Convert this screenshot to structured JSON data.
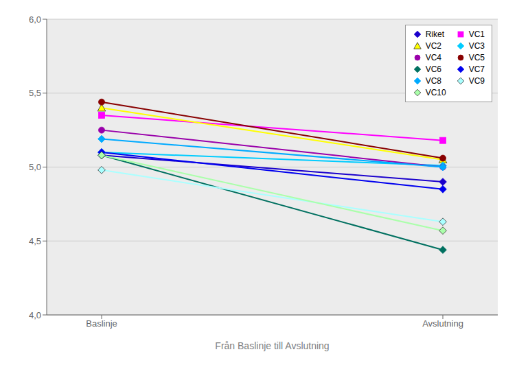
{
  "chart_data": {
    "type": "line",
    "x_label": "Från Baslinje till Avslutning",
    "categories": [
      "Baslinje",
      "Avslutning"
    ],
    "series": [
      {
        "name": "Riket",
        "color": "#1A00CC",
        "marker": "diamond",
        "values": [
          5.08,
          4.9
        ]
      },
      {
        "name": "VC1",
        "color": "#FF00FF",
        "marker": "square",
        "values": [
          5.35,
          5.18
        ]
      },
      {
        "name": "VC2",
        "color": "#FFFF00",
        "marker": "triangle",
        "values": [
          5.4,
          5.05
        ]
      },
      {
        "name": "VC3",
        "color": "#00CCFF",
        "marker": "diamond",
        "values": [
          5.1,
          5.01
        ]
      },
      {
        "name": "VC4",
        "color": "#9900AA",
        "marker": "circle",
        "values": [
          5.25,
          5.0
        ]
      },
      {
        "name": "VC5",
        "color": "#880000",
        "marker": "circle",
        "values": [
          5.44,
          5.06
        ]
      },
      {
        "name": "VC6",
        "color": "#007060",
        "marker": "diamond",
        "values": [
          5.08,
          4.44
        ]
      },
      {
        "name": "VC7",
        "color": "#0000EE",
        "marker": "diamond",
        "values": [
          5.1,
          4.85
        ]
      },
      {
        "name": "VC8",
        "color": "#00AAFF",
        "marker": "diamond",
        "values": [
          5.19,
          5.0
        ]
      },
      {
        "name": "VC9",
        "color": "#AAFFFF",
        "marker": "diamond",
        "values": [
          4.98,
          4.63
        ]
      },
      {
        "name": "VC10",
        "color": "#AAFFAA",
        "marker": "diamond",
        "values": [
          5.08,
          4.57
        ]
      }
    ],
    "ylim": [
      4.0,
      6.0
    ],
    "yticks": [
      {
        "value": 4.0,
        "label": "4,0"
      },
      {
        "value": 4.5,
        "label": "4,5"
      },
      {
        "value": 5.0,
        "label": "5,0"
      },
      {
        "value": 5.5,
        "label": "5,5"
      },
      {
        "value": 6.0,
        "label": "6,0"
      }
    ],
    "grid": true,
    "legend": "upper right"
  }
}
